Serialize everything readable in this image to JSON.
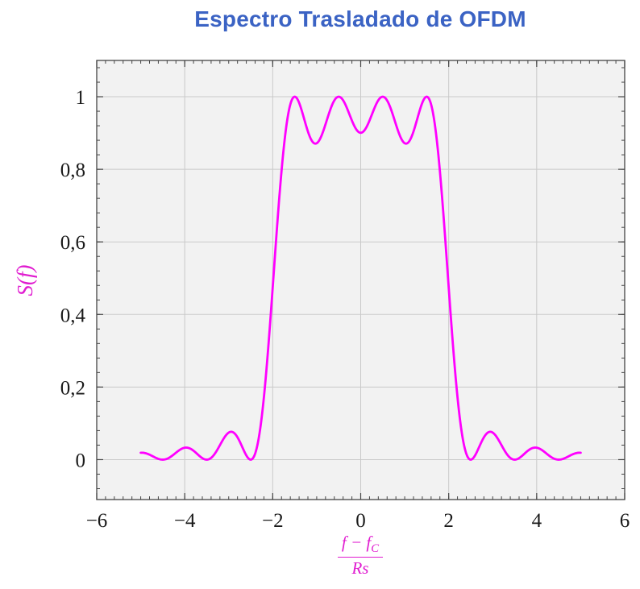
{
  "colors": {
    "title": "#3b63c4",
    "curve": "#ff00ff",
    "axis_label": "#e01bd0",
    "plot_bg": "#f2f2f2",
    "grid": "#c9c9c9",
    "border": "#444444",
    "tick": "#444444",
    "tick_label": "#1a1a1a"
  },
  "chart_data": {
    "type": "line",
    "title": "Espectro Trasladado de OFDM",
    "ylabel": "S(f)",
    "xlabel_numerator_main": "f − f",
    "xlabel_numerator_sub": "C",
    "xlabel_denominator": "Rs",
    "xlim": [
      -6,
      6
    ],
    "ylim": [
      -0.11,
      1.1
    ],
    "grid": true,
    "legend": null,
    "x_ticks": [
      {
        "v": -6,
        "label": "−6"
      },
      {
        "v": -4,
        "label": "−4"
      },
      {
        "v": -2,
        "label": "−2"
      },
      {
        "v": 0,
        "label": "0"
      },
      {
        "v": 2,
        "label": "2"
      },
      {
        "v": 4,
        "label": "4"
      },
      {
        "v": 6,
        "label": "6"
      }
    ],
    "y_ticks": [
      {
        "v": 0,
        "label": "0"
      },
      {
        "v": 0.2,
        "label": "0,2"
      },
      {
        "v": 0.4,
        "label": "0,4"
      },
      {
        "v": 0.6,
        "label": "0,6"
      },
      {
        "v": 0.8,
        "label": "0,8"
      },
      {
        "v": 1,
        "label": "1"
      }
    ],
    "x_minor_step": 0.2,
    "y_minor_step": 0.04,
    "curve": {
      "model": "OFDM power spectrum of 4 subcarriers: S(f) = sum_k sinc^2(f - f_k), sinc(t)=sin(pi t)/(pi t)",
      "subcarriers": [
        -1.5,
        -0.5,
        0.5,
        1.5
      ],
      "x_range": [
        -5,
        5
      ],
      "sample_step": 0.01,
      "key_points": [
        {
          "x": -5,
          "y": 0.019
        },
        {
          "x": -4.5,
          "y": 0
        },
        {
          "x": -4,
          "y": 0.033
        },
        {
          "x": -3.5,
          "y": 0
        },
        {
          "x": -3,
          "y": 0.075
        },
        {
          "x": -2.5,
          "y": 0
        },
        {
          "x": -2,
          "y": 0.475
        },
        {
          "x": -1.5,
          "y": 1.0
        },
        {
          "x": -1,
          "y": 0.872
        },
        {
          "x": -0.5,
          "y": 1.0
        },
        {
          "x": 0,
          "y": 0.901
        },
        {
          "x": 0.5,
          "y": 1.0
        },
        {
          "x": 1,
          "y": 0.872
        },
        {
          "x": 1.5,
          "y": 1.0
        },
        {
          "x": 2,
          "y": 0.475
        },
        {
          "x": 2.5,
          "y": 0
        },
        {
          "x": 3,
          "y": 0.075
        },
        {
          "x": 3.5,
          "y": 0
        },
        {
          "x": 4,
          "y": 0.033
        },
        {
          "x": 4.5,
          "y": 0
        },
        {
          "x": 5,
          "y": 0.019
        }
      ]
    }
  }
}
